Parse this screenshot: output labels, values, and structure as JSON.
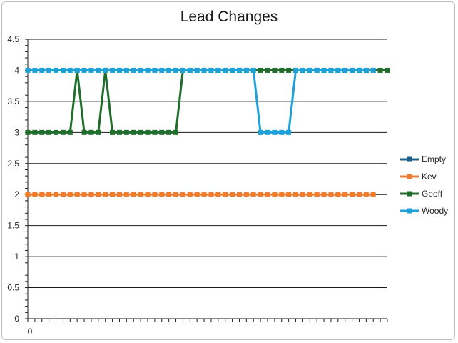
{
  "chart_data": {
    "type": "line",
    "title": "Lead Changes",
    "xlabel": "",
    "ylabel": "",
    "ylim": [
      0,
      4.5
    ],
    "y_ticks": [
      "0",
      "0.5",
      "1",
      "1.5",
      "2",
      "2.5",
      "3",
      "3.5",
      "4",
      "4.5"
    ],
    "x_tick_labels": [
      "0"
    ],
    "grid": "horizontal",
    "legend_position": "right",
    "series": [
      {
        "name": "Empty",
        "color": "#1f5f8b",
        "values": []
      },
      {
        "name": "Kev",
        "color": "#ed7d31",
        "values": [
          2,
          2,
          2,
          2,
          2,
          2,
          2,
          2,
          2,
          2,
          2,
          2,
          2,
          2,
          2,
          2,
          2,
          2,
          2,
          2,
          2,
          2,
          2,
          2,
          2,
          2,
          2,
          2,
          2,
          2,
          2,
          2,
          2,
          2,
          2,
          2,
          2,
          2,
          2,
          2,
          2,
          2,
          2,
          2,
          2,
          2,
          2,
          2,
          2,
          2
        ]
      },
      {
        "name": "Geoff",
        "color": "#1f6e2b",
        "values": [
          3,
          3,
          3,
          3,
          3,
          3,
          3,
          4,
          3,
          3,
          3,
          4,
          3,
          3,
          3,
          3,
          3,
          3,
          3,
          3,
          3,
          3,
          4,
          4,
          4,
          4,
          4,
          4,
          4,
          4,
          4,
          4,
          4,
          4,
          4,
          4,
          4,
          4,
          4,
          4,
          4,
          4,
          4,
          4,
          4,
          4,
          4,
          4,
          4,
          4,
          4,
          4
        ]
      },
      {
        "name": "Woody",
        "color": "#1ea0d8",
        "values": [
          4,
          4,
          4,
          4,
          4,
          4,
          4,
          4,
          4,
          4,
          4,
          4,
          4,
          4,
          4,
          4,
          4,
          4,
          4,
          4,
          4,
          4,
          4,
          4,
          4,
          4,
          4,
          4,
          4,
          4,
          4,
          4,
          4,
          3,
          3,
          3,
          3,
          3,
          4,
          4,
          4,
          4,
          4,
          4,
          4,
          4,
          4,
          4,
          4,
          4
        ]
      }
    ]
  }
}
